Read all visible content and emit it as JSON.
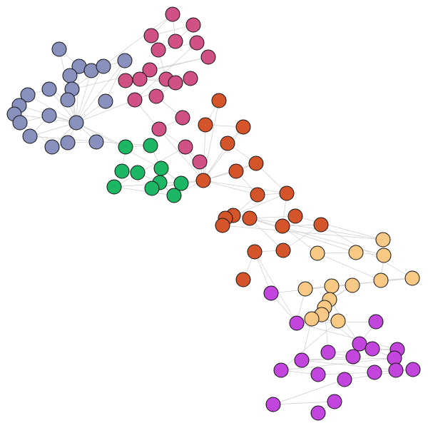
{
  "graph": {
    "groups": [
      {
        "id": "blue",
        "color": "#8891bd"
      },
      {
        "id": "pink",
        "color": "#cf5185"
      },
      {
        "id": "green",
        "color": "#1db664"
      },
      {
        "id": "orange",
        "color": "#d4552a"
      },
      {
        "id": "peach",
        "color": "#f8c985"
      },
      {
        "id": "violet",
        "color": "#c245dd"
      }
    ],
    "nodes": [
      {
        "id": "b1",
        "group": "blue"
      },
      {
        "id": "b2",
        "group": "blue"
      },
      {
        "id": "b3",
        "group": "blue"
      },
      {
        "id": "b4",
        "group": "blue"
      },
      {
        "id": "b5",
        "group": "blue"
      },
      {
        "id": "b6",
        "group": "blue"
      },
      {
        "id": "b7",
        "group": "blue"
      },
      {
        "id": "b8",
        "group": "blue"
      },
      {
        "id": "b9",
        "group": "blue"
      },
      {
        "id": "b10",
        "group": "blue"
      },
      {
        "id": "b11",
        "group": "blue"
      },
      {
        "id": "b12",
        "group": "blue"
      },
      {
        "id": "b13",
        "group": "blue"
      },
      {
        "id": "b14",
        "group": "blue"
      },
      {
        "id": "b15",
        "group": "blue"
      },
      {
        "id": "b16",
        "group": "blue"
      },
      {
        "id": "b17",
        "group": "blue"
      },
      {
        "id": "b18",
        "group": "blue"
      },
      {
        "id": "b19",
        "group": "blue"
      },
      {
        "id": "b20",
        "group": "blue"
      },
      {
        "id": "p1",
        "group": "pink"
      },
      {
        "id": "p2",
        "group": "pink"
      },
      {
        "id": "p3",
        "group": "pink"
      },
      {
        "id": "p4",
        "group": "pink"
      },
      {
        "id": "p5",
        "group": "pink"
      },
      {
        "id": "p6",
        "group": "pink"
      },
      {
        "id": "p7",
        "group": "pink"
      },
      {
        "id": "p8",
        "group": "pink"
      },
      {
        "id": "p9",
        "group": "pink"
      },
      {
        "id": "p10",
        "group": "pink"
      },
      {
        "id": "p11",
        "group": "pink"
      },
      {
        "id": "p12",
        "group": "pink"
      },
      {
        "id": "p13",
        "group": "pink"
      },
      {
        "id": "p14",
        "group": "pink"
      },
      {
        "id": "p15",
        "group": "pink"
      },
      {
        "id": "p16",
        "group": "pink"
      },
      {
        "id": "p17",
        "group": "pink"
      },
      {
        "id": "p18",
        "group": "pink"
      },
      {
        "id": "p19",
        "group": "pink"
      },
      {
        "id": "g1",
        "group": "green"
      },
      {
        "id": "g2",
        "group": "green"
      },
      {
        "id": "g3",
        "group": "green"
      },
      {
        "id": "g4",
        "group": "green"
      },
      {
        "id": "g5",
        "group": "green"
      },
      {
        "id": "g6",
        "group": "green"
      },
      {
        "id": "g7",
        "group": "green"
      },
      {
        "id": "g8",
        "group": "green"
      },
      {
        "id": "g9",
        "group": "green"
      },
      {
        "id": "g10",
        "group": "green"
      },
      {
        "id": "o1",
        "group": "orange"
      },
      {
        "id": "o2",
        "group": "orange"
      },
      {
        "id": "o3",
        "group": "orange"
      },
      {
        "id": "o4",
        "group": "orange"
      },
      {
        "id": "o5",
        "group": "orange"
      },
      {
        "id": "o6",
        "group": "orange"
      },
      {
        "id": "o7",
        "group": "orange"
      },
      {
        "id": "o8",
        "group": "orange"
      },
      {
        "id": "o9",
        "group": "orange"
      },
      {
        "id": "o10",
        "group": "orange"
      },
      {
        "id": "o11",
        "group": "orange"
      },
      {
        "id": "o12",
        "group": "orange"
      },
      {
        "id": "o13",
        "group": "orange"
      },
      {
        "id": "o14",
        "group": "orange"
      },
      {
        "id": "o15",
        "group": "orange"
      },
      {
        "id": "o16",
        "group": "orange"
      },
      {
        "id": "o17",
        "group": "orange"
      },
      {
        "id": "o18",
        "group": "orange"
      },
      {
        "id": "o19",
        "group": "orange"
      },
      {
        "id": "y1",
        "group": "peach"
      },
      {
        "id": "y2",
        "group": "peach"
      },
      {
        "id": "y3",
        "group": "peach"
      },
      {
        "id": "y4",
        "group": "peach"
      },
      {
        "id": "y5",
        "group": "peach"
      },
      {
        "id": "y6",
        "group": "peach"
      },
      {
        "id": "y7",
        "group": "peach"
      },
      {
        "id": "y8",
        "group": "peach"
      },
      {
        "id": "y9",
        "group": "peach"
      },
      {
        "id": "y10",
        "group": "peach"
      },
      {
        "id": "y11",
        "group": "peach"
      },
      {
        "id": "y12",
        "group": "peach"
      },
      {
        "id": "y13",
        "group": "peach"
      },
      {
        "id": "y14",
        "group": "peach"
      },
      {
        "id": "v1",
        "group": "violet"
      },
      {
        "id": "v2",
        "group": "violet"
      },
      {
        "id": "v3",
        "group": "violet"
      },
      {
        "id": "v4",
        "group": "violet"
      },
      {
        "id": "v5",
        "group": "violet"
      },
      {
        "id": "v6",
        "group": "violet"
      },
      {
        "id": "v7",
        "group": "violet"
      },
      {
        "id": "v8",
        "group": "violet"
      },
      {
        "id": "v9",
        "group": "violet"
      },
      {
        "id": "v10",
        "group": "violet"
      },
      {
        "id": "v11",
        "group": "violet"
      },
      {
        "id": "v12",
        "group": "violet"
      },
      {
        "id": "v13",
        "group": "violet"
      },
      {
        "id": "v14",
        "group": "violet"
      },
      {
        "id": "v15",
        "group": "violet"
      },
      {
        "id": "v16",
        "group": "violet"
      },
      {
        "id": "v17",
        "group": "violet"
      },
      {
        "id": "v18",
        "group": "violet"
      },
      {
        "id": "v19",
        "group": "violet"
      }
    ],
    "edges": [
      [
        "b1",
        "b16"
      ],
      [
        "b2",
        "b16"
      ],
      [
        "b3",
        "b16"
      ],
      [
        "b4",
        "b16"
      ],
      [
        "b5",
        "b16"
      ],
      [
        "b6",
        "b16"
      ],
      [
        "b7",
        "b16"
      ],
      [
        "b8",
        "b16"
      ],
      [
        "b9",
        "b16"
      ],
      [
        "b10",
        "b16"
      ],
      [
        "b11",
        "b16"
      ],
      [
        "b12",
        "b16"
      ],
      [
        "b13",
        "b16"
      ],
      [
        "b15",
        "b16"
      ],
      [
        "b17",
        "b16"
      ],
      [
        "b18",
        "b16"
      ],
      [
        "b19",
        "b16"
      ],
      [
        "b20",
        "b16"
      ],
      [
        "b1",
        "b2"
      ],
      [
        "b2",
        "b3"
      ],
      [
        "b4",
        "b5"
      ],
      [
        "b5",
        "b6"
      ],
      [
        "b6",
        "b9"
      ],
      [
        "b7",
        "b8"
      ],
      [
        "b10",
        "b11"
      ],
      [
        "b11",
        "b12"
      ],
      [
        "b12",
        "b13"
      ],
      [
        "b14",
        "b15"
      ],
      [
        "b15",
        "b17"
      ],
      [
        "b18",
        "b19"
      ],
      [
        "b19",
        "b20"
      ],
      [
        "b3",
        "b4"
      ],
      [
        "b8",
        "b10"
      ],
      [
        "b13",
        "b18"
      ],
      [
        "p7",
        "p8"
      ],
      [
        "p8",
        "p9"
      ],
      [
        "p9",
        "p10"
      ],
      [
        "p10",
        "p11"
      ],
      [
        "p12",
        "p13"
      ],
      [
        "p13",
        "p14"
      ],
      [
        "p15",
        "p16"
      ],
      [
        "p16",
        "p17"
      ],
      [
        "p17",
        "p18"
      ],
      [
        "p18",
        "p19"
      ],
      [
        "p1",
        "p2"
      ],
      [
        "p2",
        "p3"
      ],
      [
        "p3",
        "p4"
      ],
      [
        "p4",
        "p5"
      ],
      [
        "p5",
        "p6"
      ],
      [
        "p1",
        "p4"
      ],
      [
        "p2",
        "p5"
      ],
      [
        "p11",
        "p5"
      ],
      [
        "p6",
        "p14"
      ],
      [
        "p14",
        "p17"
      ],
      [
        "p12",
        "p15"
      ],
      [
        "p15",
        "p16"
      ],
      [
        "p10",
        "p12"
      ],
      [
        "g1",
        "g2"
      ],
      [
        "g3",
        "g4"
      ],
      [
        "g4",
        "g6"
      ],
      [
        "g6",
        "g9"
      ],
      [
        "g9",
        "g10"
      ],
      [
        "g5",
        "g8"
      ],
      [
        "g8",
        "g7"
      ],
      [
        "g1",
        "g3"
      ],
      [
        "g2",
        "g5"
      ],
      [
        "o1",
        "o2"
      ],
      [
        "o2",
        "o3"
      ],
      [
        "o3",
        "o4"
      ],
      [
        "o4",
        "o5"
      ],
      [
        "o5",
        "o6"
      ],
      [
        "o6",
        "o7"
      ],
      [
        "o7",
        "o8"
      ],
      [
        "o8",
        "o9"
      ],
      [
        "o9",
        "o10"
      ],
      [
        "o10",
        "o11"
      ],
      [
        "o11",
        "o12"
      ],
      [
        "o12",
        "o13"
      ],
      [
        "o13",
        "o14"
      ],
      [
        "o14",
        "o15"
      ],
      [
        "o15",
        "o16"
      ],
      [
        "o16",
        "o17"
      ],
      [
        "o17",
        "o18"
      ],
      [
        "o18",
        "o19"
      ],
      [
        "o8",
        "o12"
      ],
      [
        "o6",
        "o9"
      ],
      [
        "o9",
        "o15"
      ],
      [
        "o13",
        "o17"
      ],
      [
        "y1",
        "y2"
      ],
      [
        "y2",
        "y3"
      ],
      [
        "y3",
        "y4"
      ],
      [
        "y4",
        "y5"
      ],
      [
        "y5",
        "y6"
      ],
      [
        "y6",
        "y7"
      ],
      [
        "y7",
        "y8"
      ],
      [
        "y8",
        "y9"
      ],
      [
        "y9",
        "y10"
      ],
      [
        "y10",
        "y11"
      ],
      [
        "y11",
        "y12"
      ],
      [
        "y12",
        "y13"
      ],
      [
        "y13",
        "y14"
      ],
      [
        "y2",
        "y5"
      ],
      [
        "y8",
        "y12"
      ],
      [
        "v1",
        "v2"
      ],
      [
        "v2",
        "v3"
      ],
      [
        "v3",
        "v4"
      ],
      [
        "v4",
        "v5"
      ],
      [
        "v5",
        "v6"
      ],
      [
        "v6",
        "v7"
      ],
      [
        "v7",
        "v8"
      ],
      [
        "v8",
        "v9"
      ],
      [
        "v9",
        "v10"
      ],
      [
        "v10",
        "v11"
      ],
      [
        "v11",
        "v12"
      ],
      [
        "v12",
        "v13"
      ],
      [
        "v13",
        "v14"
      ],
      [
        "v14",
        "v15"
      ],
      [
        "v15",
        "v16"
      ],
      [
        "v16",
        "v17"
      ],
      [
        "v17",
        "v18"
      ],
      [
        "v18",
        "v19"
      ],
      [
        "v2",
        "v6"
      ],
      [
        "v4",
        "v10"
      ],
      [
        "v9",
        "v14"
      ],
      [
        "b16",
        "g1"
      ],
      [
        "b16",
        "g5"
      ],
      [
        "b16",
        "p14"
      ],
      [
        "b17",
        "g2"
      ],
      [
        "b7",
        "p1"
      ],
      [
        "b7",
        "p7"
      ],
      [
        "p17",
        "o1"
      ],
      [
        "p18",
        "o1"
      ],
      [
        "p19",
        "o1"
      ],
      [
        "p18",
        "g10"
      ],
      [
        "g7",
        "o1"
      ],
      [
        "g9",
        "o1"
      ],
      [
        "g10",
        "o1"
      ],
      [
        "o1",
        "o6"
      ],
      [
        "o1",
        "o7"
      ],
      [
        "o1",
        "o5"
      ],
      [
        "o1",
        "o3"
      ],
      [
        "o1",
        "o4"
      ],
      [
        "o1",
        "o8"
      ],
      [
        "o1",
        "o9"
      ],
      [
        "o10",
        "y1"
      ],
      [
        "o12",
        "y1"
      ],
      [
        "o14",
        "y1"
      ],
      [
        "o13",
        "y2"
      ],
      [
        "o13",
        "y3"
      ],
      [
        "o15",
        "y4"
      ],
      [
        "o18",
        "v1"
      ],
      [
        "o18",
        "v2"
      ],
      [
        "o16",
        "y6"
      ],
      [
        "y7",
        "v2"
      ],
      [
        "y9",
        "v2"
      ],
      [
        "y10",
        "v4"
      ],
      [
        "y11",
        "v7"
      ],
      [
        "y12",
        "v4"
      ],
      [
        "y13",
        "v9"
      ],
      [
        "y14",
        "v11"
      ],
      [
        "y6",
        "v1"
      ]
    ]
  }
}
